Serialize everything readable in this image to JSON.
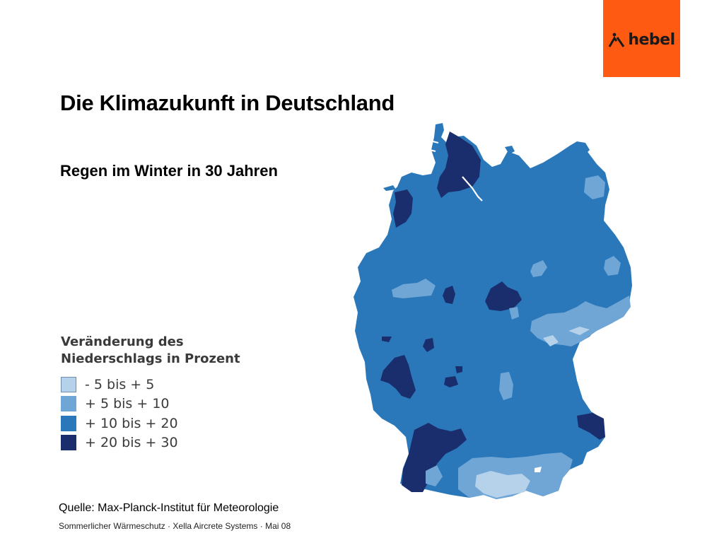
{
  "logo": {
    "text": "hebel",
    "background": "#ff5a12"
  },
  "title": "Die Klimazukunft in Deutschland",
  "subtitle": "Regen im Winter in 30 Jahren",
  "legend": {
    "title_line1": "Veränderung des",
    "title_line2": "Niederschlags in Prozent",
    "items": [
      {
        "label": "- 5 bis + 5",
        "color": "#b5d2ea"
      },
      {
        "label": "+ 5 bis + 10",
        "color": "#6fa6d6"
      },
      {
        "label": "+ 10 bis + 20",
        "color": "#2a78ba"
      },
      {
        "label": "+ 20 bis + 30",
        "color": "#1a2e6e"
      }
    ]
  },
  "source": "Quelle: Max-Planck-Institut für Meteorologie",
  "footer": {
    "part1": "Sommerlicher Wärmeschutz",
    "part2": "Xella Aircrete Systems",
    "part3": "Mai 08",
    "separator": "·"
  }
}
